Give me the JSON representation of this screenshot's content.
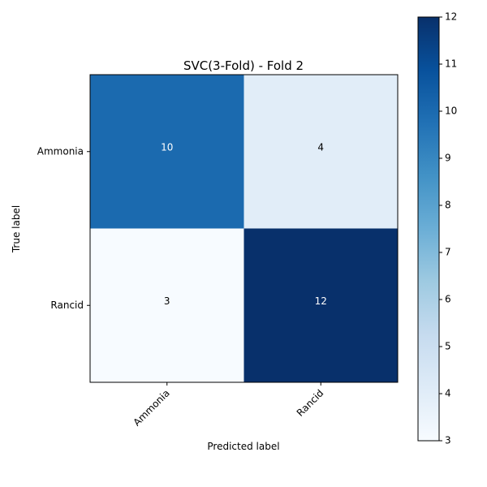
{
  "chart_data": {
    "type": "heatmap",
    "title": "SVC(3-Fold) - Fold 2",
    "xlabel": "Predicted label",
    "ylabel": "True label",
    "x_categories": [
      "Ammonia",
      "Rancid"
    ],
    "y_categories": [
      "Ammonia",
      "Rancid"
    ],
    "values": [
      [
        10,
        4
      ],
      [
        3,
        12
      ]
    ],
    "colormap": "Blues",
    "colorbar": {
      "min": 3,
      "max": 12,
      "ticks": [
        "3",
        "4",
        "5",
        "6",
        "7",
        "8",
        "9",
        "10",
        "11",
        "12"
      ]
    },
    "grid": false
  }
}
